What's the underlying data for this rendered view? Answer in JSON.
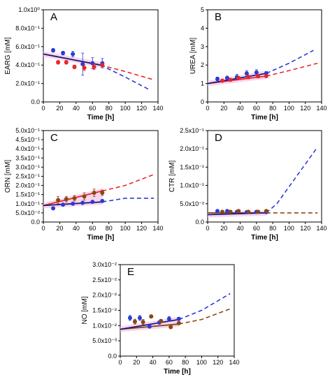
{
  "colors": {
    "red": "#e8262a",
    "blue": "#2b3bd6",
    "brown": "#8b4513",
    "navy": "#1a1a7a",
    "band": "#f3c6e6"
  },
  "chart_data": [
    {
      "id": "A",
      "type": "line",
      "letter": "A",
      "xlabel": "Time [h]",
      "ylabel": "EARG [mM]",
      "xlim": [
        0,
        140
      ],
      "ylim": [
        0,
        1.0
      ],
      "x_ticks": [
        "0",
        "20",
        "40",
        "60",
        "80",
        "100",
        "120",
        "140"
      ],
      "y_ticks": [
        "0.0",
        "2.0x10⁻¹",
        "4.0x10⁻¹",
        "6.0x10⁻¹",
        "8.0x10⁻¹",
        "1.0x10⁰"
      ],
      "x": [
        0,
        20,
        40,
        60,
        80,
        100,
        120,
        140
      ],
      "series": [
        {
          "color": "red",
          "style": "solid",
          "points": [
            [
              0,
              0.52
            ],
            [
              70,
              0.4
            ]
          ]
        },
        {
          "color": "red",
          "style": "dashed",
          "points": [
            [
              70,
              0.4
            ],
            [
              100,
              0.33
            ],
            [
              135,
              0.24
            ]
          ]
        },
        {
          "color": "navy",
          "style": "solid",
          "points": [
            [
              0,
              0.52
            ],
            [
              70,
              0.4
            ]
          ]
        },
        {
          "color": "blue",
          "style": "dashed",
          "points": [
            [
              70,
              0.4
            ],
            [
              100,
              0.27
            ],
            [
              130,
              0.13
            ]
          ]
        },
        {
          "color": "blue",
          "style": "markers",
          "points": [
            [
              12,
              0.56
            ],
            [
              24,
              0.53
            ],
            [
              36,
              0.52
            ],
            [
              48,
              0.41
            ],
            [
              60,
              0.42
            ],
            [
              72,
              0.42
            ]
          ],
          "err": [
            0.02,
            0.02,
            0.03,
            0.12,
            0.06,
            0.05
          ]
        },
        {
          "color": "red",
          "style": "markers",
          "points": [
            [
              18,
              0.43
            ],
            [
              28,
              0.43
            ],
            [
              38,
              0.38
            ],
            [
              50,
              0.37
            ],
            [
              62,
              0.38
            ],
            [
              72,
              0.4
            ]
          ],
          "err": [
            0.02,
            0.02,
            0.02,
            0.03,
            0.03,
            0.02
          ]
        }
      ]
    },
    {
      "id": "B",
      "type": "line",
      "letter": "B",
      "xlabel": "Time [h]",
      "ylabel": "UREA [mM]",
      "xlim": [
        0,
        140
      ],
      "ylim": [
        0,
        5
      ],
      "x_ticks": [
        "0",
        "20",
        "40",
        "60",
        "80",
        "100",
        "120",
        "140"
      ],
      "y_ticks": [
        "0",
        "1",
        "2",
        "3",
        "4",
        "5"
      ],
      "series": [
        {
          "color": "red",
          "style": "solid",
          "points": [
            [
              0,
              1.0
            ],
            [
              72,
              1.4
            ]
          ]
        },
        {
          "color": "red",
          "style": "dashed",
          "points": [
            [
              72,
              1.4
            ],
            [
              100,
              1.7
            ],
            [
              135,
              2.1
            ]
          ]
        },
        {
          "color": "navy",
          "style": "solid",
          "points": [
            [
              0,
              1.0
            ],
            [
              72,
              1.55
            ]
          ]
        },
        {
          "color": "blue",
          "style": "dashed",
          "points": [
            [
              72,
              1.55
            ],
            [
              100,
              2.1
            ],
            [
              130,
              2.8
            ]
          ]
        },
        {
          "color": "blue",
          "style": "markers",
          "points": [
            [
              12,
              1.25
            ],
            [
              24,
              1.3
            ],
            [
              36,
              1.35
            ],
            [
              48,
              1.55
            ],
            [
              60,
              1.6
            ],
            [
              72,
              1.55
            ]
          ],
          "err": [
            0.1,
            0.1,
            0.15,
            0.15,
            0.15,
            0.1
          ]
        },
        {
          "color": "red",
          "style": "markers",
          "points": [
            [
              18,
              1.15
            ],
            [
              28,
              1.2
            ],
            [
              38,
              1.3
            ],
            [
              50,
              1.35
            ],
            [
              62,
              1.4
            ],
            [
              72,
              1.4
            ]
          ],
          "err": [
            0.05,
            0.05,
            0.05,
            0.1,
            0.1,
            0.05
          ]
        }
      ]
    },
    {
      "id": "C",
      "type": "line",
      "letter": "C",
      "xlabel": "Time [h]",
      "ylabel": "ORN [mM]",
      "xlim": [
        0,
        140
      ],
      "ylim": [
        0,
        0.5
      ],
      "x_ticks": [
        "0",
        "20",
        "40",
        "60",
        "80",
        "100",
        "120",
        "140"
      ],
      "y_ticks": [
        "0.0",
        "5.0x10⁻²",
        "1.0x10⁻¹",
        "1.5x10⁻¹",
        "2.0x10⁻¹",
        "2.5x10⁻¹",
        "3.0x10⁻¹",
        "3.5x10⁻¹",
        "4.0x10⁻¹",
        "4.5x10⁻¹",
        "5.0x10⁻¹"
      ],
      "series": [
        {
          "color": "red",
          "style": "solid",
          "points": [
            [
              0,
              0.09
            ],
            [
              72,
              0.17
            ]
          ]
        },
        {
          "color": "red",
          "style": "dashed",
          "points": [
            [
              72,
              0.17
            ],
            [
              100,
              0.2
            ],
            [
              135,
              0.26
            ]
          ]
        },
        {
          "color": "navy",
          "style": "solid",
          "points": [
            [
              0,
              0.09
            ],
            [
              72,
              0.11
            ]
          ]
        },
        {
          "color": "blue",
          "style": "dashed",
          "points": [
            [
              72,
              0.11
            ],
            [
              100,
              0.13
            ],
            [
              135,
              0.13
            ]
          ]
        },
        {
          "color": "blue",
          "style": "markers",
          "points": [
            [
              12,
              0.075
            ],
            [
              24,
              0.095
            ],
            [
              36,
              0.1
            ],
            [
              48,
              0.105
            ],
            [
              60,
              0.11
            ],
            [
              72,
              0.115
            ]
          ],
          "err": [
            0.005,
            0.005,
            0.005,
            0.005,
            0.005,
            0.005
          ]
        },
        {
          "color": "brown",
          "style": "markers",
          "points": [
            [
              18,
              0.12
            ],
            [
              28,
              0.125
            ],
            [
              38,
              0.13
            ],
            [
              50,
              0.14
            ],
            [
              62,
              0.16
            ],
            [
              72,
              0.16
            ]
          ],
          "err": [
            0.02,
            0.015,
            0.015,
            0.02,
            0.02,
            0.015
          ]
        }
      ]
    },
    {
      "id": "D",
      "type": "line",
      "letter": "D",
      "xlabel": "Time [h]",
      "ylabel": "CTR [mM]",
      "xlim": [
        0,
        140
      ],
      "ylim": [
        0,
        0.25
      ],
      "x_ticks": [
        "0",
        "20",
        "40",
        "60",
        "80",
        "100",
        "120",
        "140"
      ],
      "y_ticks": [
        "0.0",
        "5.0x10⁻²",
        "1.0x10⁻¹",
        "1.5x10⁻¹",
        "2.0x10⁻¹",
        "2.5x10⁻¹"
      ],
      "series": [
        {
          "color": "brown",
          "style": "solid",
          "points": [
            [
              0,
              0.025
            ],
            [
              72,
              0.025
            ]
          ]
        },
        {
          "color": "brown",
          "style": "dashed",
          "points": [
            [
              72,
              0.025
            ],
            [
              135,
              0.025
            ]
          ]
        },
        {
          "color": "navy",
          "style": "solid",
          "points": [
            [
              0,
              0.02
            ],
            [
              72,
              0.025
            ]
          ]
        },
        {
          "color": "blue",
          "style": "dashed",
          "points": [
            [
              72,
              0.025
            ],
            [
              85,
              0.05
            ],
            [
              135,
              0.205
            ]
          ]
        },
        {
          "color": "blue",
          "style": "markers",
          "points": [
            [
              12,
              0.03
            ],
            [
              24,
              0.03
            ],
            [
              36,
              0.028
            ],
            [
              48,
              0.027
            ],
            [
              60,
              0.028
            ],
            [
              72,
              0.027
            ]
          ],
          "err": [
            0.003,
            0.003,
            0.003,
            0.003,
            0.003,
            0.003
          ]
        },
        {
          "color": "brown",
          "style": "markers",
          "points": [
            [
              18,
              0.028
            ],
            [
              28,
              0.028
            ],
            [
              38,
              0.03
            ],
            [
              50,
              0.028
            ],
            [
              62,
              0.028
            ],
            [
              72,
              0.03
            ]
          ],
          "err": [
            0.003,
            0.003,
            0.003,
            0.003,
            0.003,
            0.003
          ]
        }
      ]
    },
    {
      "id": "E",
      "type": "line",
      "letter": "E",
      "xlabel": "Time [h]",
      "ylabel": "NO [mM]",
      "xlim": [
        0,
        140
      ],
      "ylim": [
        0,
        0.03
      ],
      "x_ticks": [
        "0",
        "20",
        "40",
        "60",
        "80",
        "100",
        "120",
        "140"
      ],
      "y_ticks": [
        "0.0",
        "5.0x10⁻³",
        "1.0x10⁻²",
        "1.5x10⁻²",
        "2.0x10⁻²",
        "2.5x10⁻²",
        "3.0x10⁻²"
      ],
      "series": [
        {
          "color": "brown",
          "style": "solid",
          "points": [
            [
              0,
              0.0088
            ],
            [
              72,
              0.0105
            ]
          ]
        },
        {
          "color": "brown",
          "style": "dashed",
          "points": [
            [
              72,
              0.0105
            ],
            [
              100,
              0.012
            ],
            [
              135,
              0.0155
            ]
          ]
        },
        {
          "color": "navy",
          "style": "solid",
          "points": [
            [
              0,
              0.0088
            ],
            [
              72,
              0.012
            ]
          ]
        },
        {
          "color": "blue",
          "style": "dashed",
          "points": [
            [
              72,
              0.012
            ],
            [
              100,
              0.015
            ],
            [
              135,
              0.0205
            ]
          ]
        },
        {
          "color": "blue",
          "style": "markers",
          "points": [
            [
              12,
              0.0125
            ],
            [
              24,
              0.0125
            ],
            [
              36,
              0.0097
            ],
            [
              48,
              0.011
            ],
            [
              60,
              0.0122
            ],
            [
              72,
              0.0122
            ]
          ],
          "err": [
            0.0008,
            0.0008,
            0.0005,
            0.0005,
            0.0008,
            0.0005
          ]
        },
        {
          "color": "brown",
          "style": "markers",
          "points": [
            [
              18,
              0.0113
            ],
            [
              28,
              0.0112
            ],
            [
              38,
              0.013
            ],
            [
              50,
              0.0115
            ],
            [
              62,
              0.0095
            ],
            [
              72,
              0.0108
            ]
          ],
          "err": [
            0.0008,
            0.0008,
            0.0005,
            0.0005,
            0.0005,
            0.0005
          ]
        }
      ]
    }
  ]
}
